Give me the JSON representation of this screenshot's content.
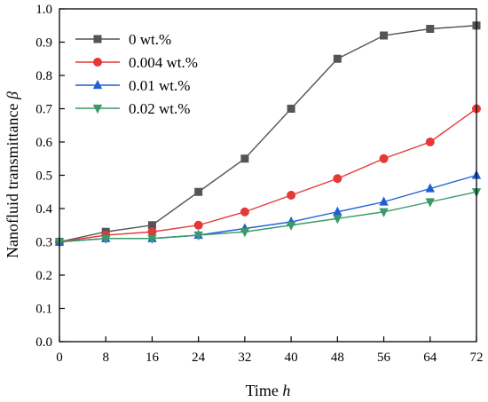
{
  "chart_data": {
    "type": "line",
    "xlabel": "Time",
    "xlabel_var": "h",
    "ylabel": "Nanofluid transmittance",
    "ylabel_var": "β",
    "x": [
      0,
      8,
      16,
      24,
      32,
      40,
      48,
      56,
      64,
      72
    ],
    "xlim": [
      0,
      72
    ],
    "ylim": [
      0.0,
      1.0
    ],
    "xticks": [
      "0",
      "8",
      "16",
      "24",
      "32",
      "40",
      "48",
      "56",
      "64",
      "72"
    ],
    "yticks": [
      "0.0",
      "0.1",
      "0.2",
      "0.3",
      "0.4",
      "0.5",
      "0.6",
      "0.7",
      "0.8",
      "0.9",
      "1.0"
    ],
    "grid": false,
    "legend_position": "top-left",
    "series": [
      {
        "name": "0 wt.%",
        "color": "#555555",
        "marker": "square",
        "values": [
          0.3,
          0.33,
          0.35,
          0.45,
          0.55,
          0.7,
          0.85,
          0.92,
          0.94,
          0.95
        ]
      },
      {
        "name": "0.004 wt.%",
        "color": "#e53935",
        "marker": "circle",
        "values": [
          0.3,
          0.32,
          0.33,
          0.35,
          0.39,
          0.44,
          0.49,
          0.55,
          0.6,
          0.7
        ]
      },
      {
        "name": "0.01 wt.%",
        "color": "#1f5fd6",
        "marker": "triangle-up",
        "values": [
          0.3,
          0.31,
          0.31,
          0.32,
          0.34,
          0.36,
          0.39,
          0.42,
          0.46,
          0.5
        ]
      },
      {
        "name": "0.02 wt.%",
        "color": "#3a9a6a",
        "marker": "triangle-down",
        "values": [
          0.3,
          0.31,
          0.31,
          0.32,
          0.33,
          0.35,
          0.37,
          0.39,
          0.42,
          0.45
        ]
      }
    ]
  }
}
